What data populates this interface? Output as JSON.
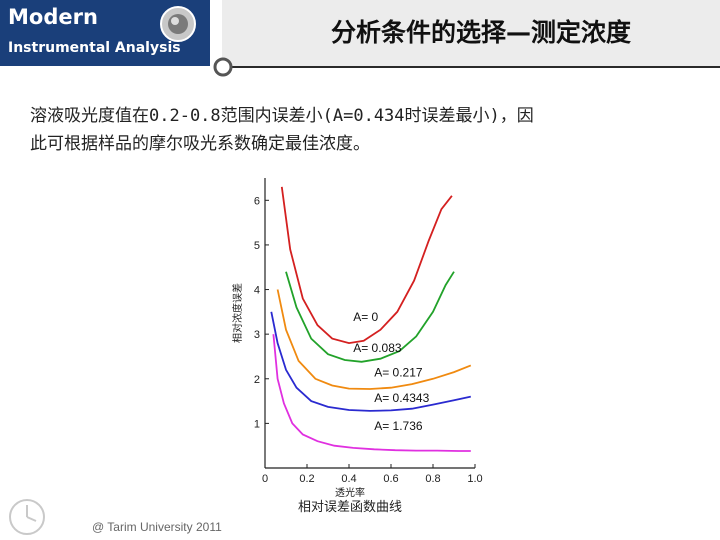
{
  "header": {
    "brand_line1": "Modern",
    "brand_line2": "Instrumental Analysis",
    "title": "分析条件的选择—测定浓度",
    "logo_icon": "university-logo-icon",
    "ring_icon": "ring-decoration-icon"
  },
  "body": {
    "line1": "溶液吸光度值在0.2-0.8范围内误差小(A=0.434时误差最小)，因",
    "line2": "此可根据样品的摩尔吸光系数确定最佳浓度。"
  },
  "chart_data": {
    "type": "line",
    "xlabel": "透光率",
    "ylabel": "相对浓度误差",
    "caption": "相对误差函数曲线",
    "xlim": [
      0,
      1.0
    ],
    "ylim": [
      0,
      6.5
    ],
    "x_ticks": [
      "0",
      "0.2",
      "0.4",
      "0.6",
      "0.8",
      "1.0"
    ],
    "y_ticks": [
      "1",
      "2",
      "3",
      "4",
      "5",
      "6"
    ],
    "series": [
      {
        "name": "A= 0",
        "color": "#d42020",
        "x": [
          0.08,
          0.12,
          0.18,
          0.25,
          0.32,
          0.4,
          0.47,
          0.55,
          0.63,
          0.71,
          0.78,
          0.84,
          0.89
        ],
        "y": [
          6.3,
          4.9,
          3.8,
          3.2,
          2.9,
          2.8,
          2.85,
          3.1,
          3.5,
          4.2,
          5.1,
          5.8,
          6.1
        ]
      },
      {
        "name": "A= 0.083",
        "color": "#22a22a",
        "x": [
          0.1,
          0.15,
          0.22,
          0.3,
          0.38,
          0.46,
          0.55,
          0.64,
          0.72,
          0.8,
          0.86,
          0.9
        ],
        "y": [
          4.4,
          3.6,
          2.9,
          2.55,
          2.42,
          2.38,
          2.45,
          2.62,
          2.95,
          3.5,
          4.1,
          4.4
        ]
      },
      {
        "name": "A= 0.217",
        "color": "#f08a10",
        "x": [
          0.06,
          0.1,
          0.16,
          0.24,
          0.32,
          0.4,
          0.5,
          0.6,
          0.7,
          0.8,
          0.9,
          0.98
        ],
        "y": [
          4.0,
          3.1,
          2.4,
          2.0,
          1.85,
          1.78,
          1.77,
          1.8,
          1.88,
          2.0,
          2.15,
          2.3
        ]
      },
      {
        "name": "A= 0.4343",
        "color": "#2a2ad0",
        "x": [
          0.03,
          0.06,
          0.1,
          0.15,
          0.22,
          0.3,
          0.4,
          0.5,
          0.6,
          0.7,
          0.8,
          0.9,
          0.98
        ],
        "y": [
          3.5,
          2.8,
          2.2,
          1.8,
          1.5,
          1.37,
          1.3,
          1.28,
          1.29,
          1.33,
          1.42,
          1.52,
          1.6
        ]
      },
      {
        "name": "A= 1.736",
        "color": "#e030e0",
        "x": [
          0.04,
          0.06,
          0.09,
          0.13,
          0.18,
          0.25,
          0.33,
          0.42,
          0.52,
          0.62,
          0.72,
          0.82,
          0.92,
          0.98
        ],
        "y": [
          3.0,
          2.0,
          1.45,
          1.0,
          0.75,
          0.6,
          0.5,
          0.45,
          0.42,
          0.4,
          0.39,
          0.39,
          0.38,
          0.38
        ]
      }
    ]
  },
  "footer": {
    "text": "@ Tarim University 2011"
  },
  "decor": {
    "clock_icon": "clock-watermark-icon"
  }
}
